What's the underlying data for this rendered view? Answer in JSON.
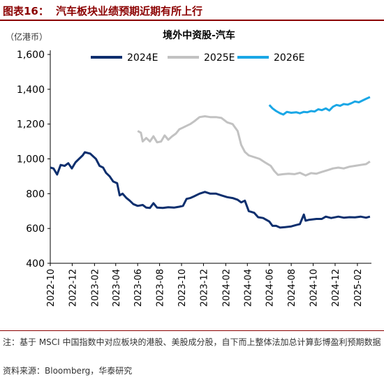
{
  "figure": {
    "label": "图表16：",
    "title": "汽车板块业绩预期近期有所上行",
    "note": "注：基于 MSCI 中国指数中对应板块的港股、美股成分股，自下而上整体法加总计算彭博盈利预期数据",
    "source": "资料来源：Bloomberg，华泰研究"
  },
  "chart_data": {
    "type": "line",
    "title": "境外中资股-汽车",
    "unit_label": "（亿港币）",
    "ylim": [
      400,
      1600
    ],
    "yticks": [
      "1,600",
      "1,400",
      "1,200",
      "1,000",
      "800",
      "600",
      "400"
    ],
    "xlim": [
      "2022-10",
      "2025-03"
    ],
    "xticks": [
      "2022-10",
      "2022-12",
      "2023-02",
      "2023-04",
      "2023-06",
      "2023-08",
      "2023-10",
      "2023-12",
      "2024-02",
      "2024-04",
      "2024-06",
      "2024-08",
      "2024-10",
      "2024-12",
      "2025-02"
    ],
    "legend_position": "top",
    "grid": false,
    "series": [
      {
        "name": "2024E",
        "color": "#0d2f6e",
        "points": [
          [
            "2022-10-01",
            950
          ],
          [
            "2022-10-10",
            945
          ],
          [
            "2022-10-20",
            910
          ],
          [
            "2022-10-30",
            965
          ],
          [
            "2022-11-10",
            960
          ],
          [
            "2022-11-20",
            975
          ],
          [
            "2022-11-30",
            945
          ],
          [
            "2022-12-10",
            980
          ],
          [
            "2022-12-20",
            1000
          ],
          [
            "2022-12-30",
            1020
          ],
          [
            "2023-01-05",
            1038
          ],
          [
            "2023-01-20",
            1030
          ],
          [
            "2023-02-05",
            1000
          ],
          [
            "2023-02-15",
            960
          ],
          [
            "2023-02-25",
            950
          ],
          [
            "2023-03-05",
            920
          ],
          [
            "2023-03-15",
            900
          ],
          [
            "2023-03-25",
            870
          ],
          [
            "2023-04-05",
            860
          ],
          [
            "2023-04-12",
            790
          ],
          [
            "2023-04-20",
            800
          ],
          [
            "2023-05-01",
            775
          ],
          [
            "2023-05-10",
            760
          ],
          [
            "2023-05-20",
            740
          ],
          [
            "2023-06-01",
            730
          ],
          [
            "2023-06-15",
            735
          ],
          [
            "2023-06-25",
            720
          ],
          [
            "2023-07-05",
            718
          ],
          [
            "2023-07-15",
            745
          ],
          [
            "2023-07-25",
            720
          ],
          [
            "2023-08-10",
            718
          ],
          [
            "2023-08-25",
            722
          ],
          [
            "2023-09-10",
            720
          ],
          [
            "2023-09-25",
            725
          ],
          [
            "2023-10-05",
            730
          ],
          [
            "2023-10-15",
            770
          ],
          [
            "2023-10-25",
            775
          ],
          [
            "2023-11-05",
            785
          ],
          [
            "2023-11-20",
            800
          ],
          [
            "2023-12-05",
            810
          ],
          [
            "2023-12-20",
            800
          ],
          [
            "2024-01-05",
            800
          ],
          [
            "2024-01-20",
            790
          ],
          [
            "2024-02-05",
            780
          ],
          [
            "2024-02-20",
            775
          ],
          [
            "2024-03-05",
            765
          ],
          [
            "2024-03-15",
            750
          ],
          [
            "2024-03-25",
            760
          ],
          [
            "2024-04-05",
            700
          ],
          [
            "2024-04-20",
            690
          ],
          [
            "2024-05-01",
            665
          ],
          [
            "2024-05-15",
            660
          ],
          [
            "2024-06-01",
            640
          ],
          [
            "2024-06-10",
            615
          ],
          [
            "2024-06-20",
            615
          ],
          [
            "2024-07-01",
            605
          ],
          [
            "2024-07-15",
            608
          ],
          [
            "2024-08-01",
            612
          ],
          [
            "2024-08-15",
            620
          ],
          [
            "2024-08-25",
            625
          ],
          [
            "2024-09-05",
            680
          ],
          [
            "2024-09-10",
            645
          ],
          [
            "2024-09-20",
            650
          ],
          [
            "2024-10-10",
            655
          ],
          [
            "2024-10-25",
            655
          ],
          [
            "2024-11-05",
            668
          ],
          [
            "2024-11-20",
            660
          ],
          [
            "2024-12-10",
            668
          ],
          [
            "2024-12-25",
            662
          ],
          [
            "2025-01-10",
            665
          ],
          [
            "2025-01-25",
            664
          ],
          [
            "2025-02-10",
            668
          ],
          [
            "2025-02-25",
            662
          ],
          [
            "2025-03-08",
            668
          ]
        ]
      },
      {
        "name": "2025E",
        "color": "#c2c2c2",
        "points": [
          [
            "2023-06-01",
            1160
          ],
          [
            "2023-06-10",
            1150
          ],
          [
            "2023-06-15",
            1100
          ],
          [
            "2023-06-25",
            1120
          ],
          [
            "2023-07-05",
            1100
          ],
          [
            "2023-07-15",
            1130
          ],
          [
            "2023-07-25",
            1095
          ],
          [
            "2023-08-05",
            1100
          ],
          [
            "2023-08-15",
            1135
          ],
          [
            "2023-08-25",
            1110
          ],
          [
            "2023-09-05",
            1130
          ],
          [
            "2023-09-15",
            1145
          ],
          [
            "2023-09-25",
            1170
          ],
          [
            "2023-10-05",
            1180
          ],
          [
            "2023-10-15",
            1190
          ],
          [
            "2023-10-25",
            1200
          ],
          [
            "2023-11-05",
            1215
          ],
          [
            "2023-11-20",
            1240
          ],
          [
            "2023-12-05",
            1245
          ],
          [
            "2023-12-20",
            1240
          ],
          [
            "2024-01-05",
            1240
          ],
          [
            "2024-01-20",
            1235
          ],
          [
            "2024-02-05",
            1210
          ],
          [
            "2024-02-20",
            1200
          ],
          [
            "2024-03-05",
            1160
          ],
          [
            "2024-03-15",
            1080
          ],
          [
            "2024-03-25",
            1040
          ],
          [
            "2024-04-05",
            1020
          ],
          [
            "2024-04-20",
            1010
          ],
          [
            "2024-05-05",
            1000
          ],
          [
            "2024-05-20",
            980
          ],
          [
            "2024-06-05",
            960
          ],
          [
            "2024-06-15",
            930
          ],
          [
            "2024-06-25",
            908
          ],
          [
            "2024-07-10",
            912
          ],
          [
            "2024-07-25",
            915
          ],
          [
            "2024-08-10",
            912
          ],
          [
            "2024-08-25",
            920
          ],
          [
            "2024-09-10",
            905
          ],
          [
            "2024-09-25",
            918
          ],
          [
            "2024-10-10",
            915
          ],
          [
            "2024-10-25",
            925
          ],
          [
            "2024-11-10",
            935
          ],
          [
            "2024-11-25",
            945
          ],
          [
            "2024-12-10",
            950
          ],
          [
            "2024-12-25",
            945
          ],
          [
            "2025-01-10",
            955
          ],
          [
            "2025-01-25",
            960
          ],
          [
            "2025-02-10",
            965
          ],
          [
            "2025-02-25",
            970
          ],
          [
            "2025-03-08",
            985
          ]
        ]
      },
      {
        "name": "2026E",
        "color": "#1aa7e6",
        "points": [
          [
            "2024-06-01",
            1310
          ],
          [
            "2024-06-10",
            1290
          ],
          [
            "2024-06-20",
            1275
          ],
          [
            "2024-07-01",
            1262
          ],
          [
            "2024-07-10",
            1255
          ],
          [
            "2024-07-20",
            1270
          ],
          [
            "2024-08-01",
            1265
          ],
          [
            "2024-08-15",
            1268
          ],
          [
            "2024-08-25",
            1262
          ],
          [
            "2024-09-05",
            1270
          ],
          [
            "2024-09-15",
            1268
          ],
          [
            "2024-09-25",
            1275
          ],
          [
            "2024-10-05",
            1272
          ],
          [
            "2024-10-15",
            1285
          ],
          [
            "2024-10-25",
            1280
          ],
          [
            "2024-11-05",
            1290
          ],
          [
            "2024-11-15",
            1278
          ],
          [
            "2024-11-25",
            1300
          ],
          [
            "2024-12-05",
            1310
          ],
          [
            "2024-12-15",
            1305
          ],
          [
            "2024-12-25",
            1315
          ],
          [
            "2025-01-05",
            1312
          ],
          [
            "2025-01-15",
            1320
          ],
          [
            "2025-01-25",
            1330
          ],
          [
            "2025-02-05",
            1325
          ],
          [
            "2025-02-15",
            1335
          ],
          [
            "2025-02-25",
            1345
          ],
          [
            "2025-03-08",
            1355
          ]
        ]
      }
    ]
  }
}
